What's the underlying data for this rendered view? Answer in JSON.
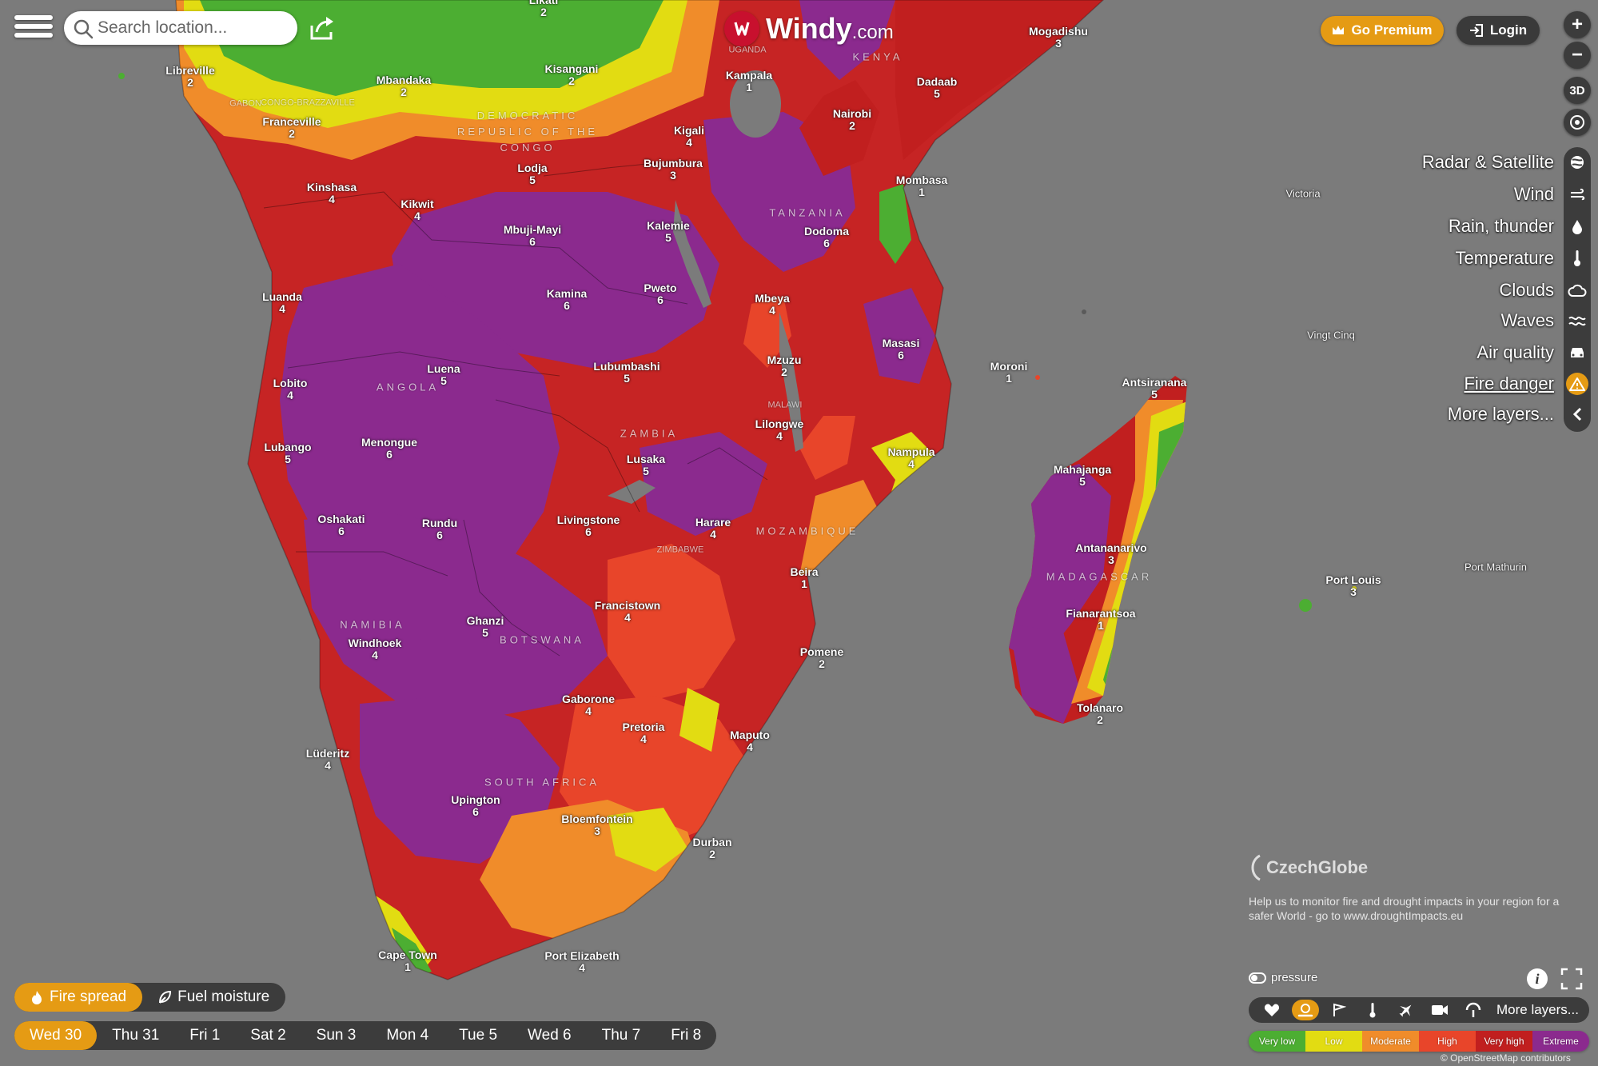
{
  "search": {
    "placeholder": "Search location..."
  },
  "logo": {
    "brand": "Windy",
    "suffix": ".com"
  },
  "header": {
    "premium_label": "Go Premium",
    "login_label": "Login"
  },
  "controls": {
    "zoom_in": "+",
    "zoom_out": "−",
    "three_d": "3D"
  },
  "layers": [
    {
      "label": "Radar & Satellite",
      "icon": "satellite-icon"
    },
    {
      "label": "Wind",
      "icon": "wind-icon"
    },
    {
      "label": "Rain, thunder",
      "icon": "rain-icon"
    },
    {
      "label": "Temperature",
      "icon": "thermometer-icon"
    },
    {
      "label": "Clouds",
      "icon": "cloud-icon"
    },
    {
      "label": "Waves",
      "icon": "waves-icon"
    },
    {
      "label": "Air quality",
      "icon": "car-icon"
    },
    {
      "label": "Fire danger",
      "icon": "fire-danger-icon",
      "active": true
    },
    {
      "label": "More layers...",
      "icon": "chevron-left-icon"
    }
  ],
  "czechglobe": {
    "name": "CzechGlobe",
    "text": "Help us to monitor fire and drought impacts in your region for a safer World - go to www.droughtImpacts.eu"
  },
  "overlay": {
    "pressure_label": "pressure",
    "more_label": "More layers..."
  },
  "legend": [
    {
      "label": "Very low",
      "color": "#4cae32"
    },
    {
      "label": "Low",
      "color": "#e2dc12"
    },
    {
      "label": "Moderate",
      "color": "#f08c2a"
    },
    {
      "label": "High",
      "color": "#e8452a"
    },
    {
      "label": "Very high",
      "color": "#c11f1f"
    },
    {
      "label": "Extreme",
      "color": "#8b2a8e"
    }
  ],
  "attribution": "© OpenStreetMap contributors",
  "modes": [
    {
      "label": "Fire spread",
      "active": true
    },
    {
      "label": "Fuel moisture",
      "active": false
    }
  ],
  "days": [
    "Wed 30",
    "Thu 31",
    "Fri 1",
    "Sat 2",
    "Sun 3",
    "Mon 4",
    "Tue 5",
    "Wed 6",
    "Thu 7",
    "Fri 8"
  ],
  "active_day": "Wed 30",
  "cities": [
    {
      "name": "Likati",
      "value": "2"
    },
    {
      "name": "Libreville",
      "value": "2"
    },
    {
      "name": "Mbandaka",
      "value": "2"
    },
    {
      "name": "Kisangani",
      "value": "2"
    },
    {
      "name": "Kampala",
      "value": "1"
    },
    {
      "name": "Mogadishu",
      "value": "3"
    },
    {
      "name": "Dadaab",
      "value": "5"
    },
    {
      "name": "Nairobi",
      "value": "2"
    },
    {
      "name": "Kigali",
      "value": "4"
    },
    {
      "name": "Franceville",
      "value": "2"
    },
    {
      "name": "Lodja",
      "value": "5"
    },
    {
      "name": "Bujumbura",
      "value": "3"
    },
    {
      "name": "Kinshasa",
      "value": "4"
    },
    {
      "name": "Kikwit",
      "value": "4"
    },
    {
      "name": "Mombasa",
      "value": "1"
    },
    {
      "name": "Mbuji-Mayi",
      "value": "6"
    },
    {
      "name": "Kalemie",
      "value": "5"
    },
    {
      "name": "Dodoma",
      "value": "6"
    },
    {
      "name": "Luanda",
      "value": "4"
    },
    {
      "name": "Kamina",
      "value": "6"
    },
    {
      "name": "Pweto",
      "value": "6"
    },
    {
      "name": "Mbeya",
      "value": "4"
    },
    {
      "name": "Masasi",
      "value": "6"
    },
    {
      "name": "Luena",
      "value": "5"
    },
    {
      "name": "Lubumbashi",
      "value": "5"
    },
    {
      "name": "Mzuzu",
      "value": "2"
    },
    {
      "name": "Moroni",
      "value": "1"
    },
    {
      "name": "Antsiranana",
      "value": "5"
    },
    {
      "name": "Lobito",
      "value": "4"
    },
    {
      "name": "Lilongwe",
      "value": "4"
    },
    {
      "name": "Lubango",
      "value": "5"
    },
    {
      "name": "Menongue",
      "value": "6"
    },
    {
      "name": "Nampula",
      "value": "4"
    },
    {
      "name": "Lusaka",
      "value": "5"
    },
    {
      "name": "Mahajanga",
      "value": "5"
    },
    {
      "name": "Oshakati",
      "value": "6"
    },
    {
      "name": "Rundu",
      "value": "6"
    },
    {
      "name": "Livingstone",
      "value": "6"
    },
    {
      "name": "Harare",
      "value": "4"
    },
    {
      "name": "Antananarivo",
      "value": "3"
    },
    {
      "name": "Beira",
      "value": "1"
    },
    {
      "name": "Port Louis",
      "value": "3"
    },
    {
      "name": "Francistown",
      "value": "4"
    },
    {
      "name": "Fianarantsoa",
      "value": "1"
    },
    {
      "name": "Ghanzi",
      "value": "5"
    },
    {
      "name": "Windhoek",
      "value": "4"
    },
    {
      "name": "Pomene",
      "value": "2"
    },
    {
      "name": "Gaborone",
      "value": "4"
    },
    {
      "name": "Tolanaro",
      "value": "2"
    },
    {
      "name": "Pretoria",
      "value": "4"
    },
    {
      "name": "Maputo",
      "value": "4"
    },
    {
      "name": "Lüderitz",
      "value": "4"
    },
    {
      "name": "Upington",
      "value": "6"
    },
    {
      "name": "Bloemfontein",
      "value": "3"
    },
    {
      "name": "Durban",
      "value": "2"
    },
    {
      "name": "Cape Town",
      "value": "1"
    },
    {
      "name": "Port Elizabeth",
      "value": "4"
    }
  ],
  "places": [
    "Victoria",
    "Vingt Cinq",
    "Port Mathurin"
  ],
  "countries": [
    "GABON",
    "CONGO-BRAZZAVILLE",
    "UGANDA",
    "KENYA",
    "DEMOCRATIC REPUBLIC OF THE CONGO",
    "TANZANIA",
    "ANGOLA",
    "MALAWI",
    "ZAMBIA",
    "MOZAMBIQUE",
    "ZIMBABWE",
    "MADAGASCAR",
    "NAMIBIA",
    "BOTSWANA",
    "SOUTH AFRICA"
  ]
}
